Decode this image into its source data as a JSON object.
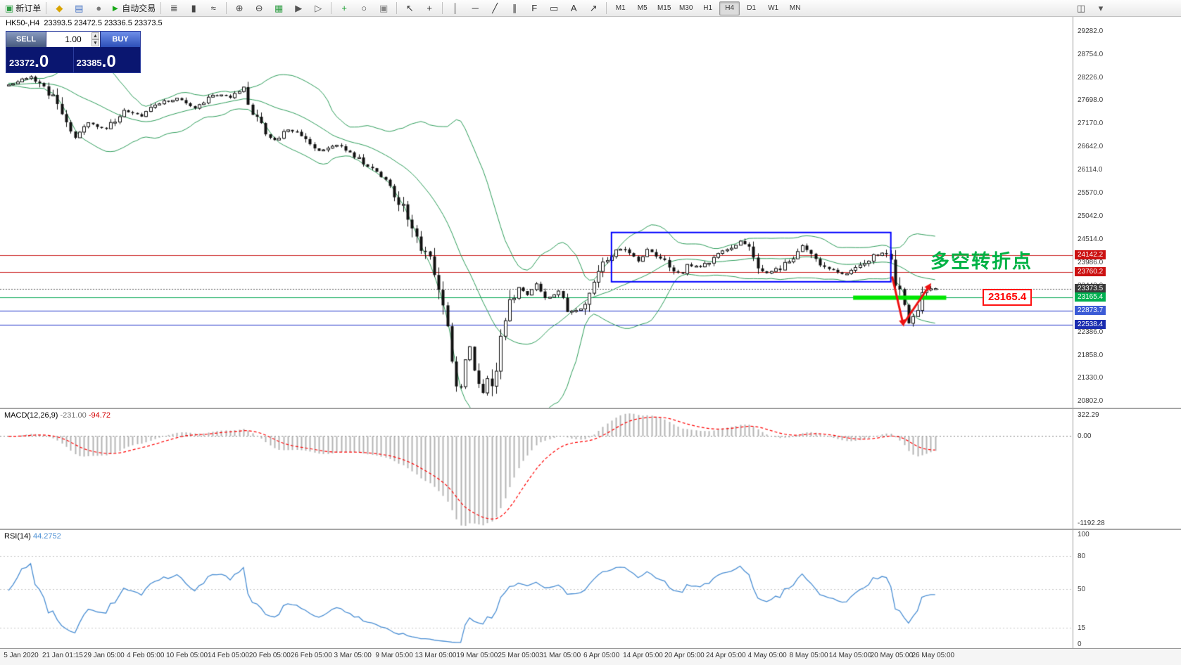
{
  "colors": {
    "toolbar_bg": "#f0f0f0",
    "chart_bg": "#ffffff",
    "bull": "#ffffff",
    "bear": "#111111",
    "candle_outline": "#111111",
    "bollinger": "#2e9e5b",
    "macd_hist": "#b4b4b4",
    "macd_signal": "#ff0000",
    "rsi_line": "#4b8fd4",
    "axis_text": "#3c3c3c",
    "level_red": "#cc2222",
    "level_green": "#00a651",
    "level_blue": "#2233cc",
    "current_price_line": "#666666",
    "box_blue": "#0000ff",
    "highlight_green": "#00e600",
    "annotation_green": "#00b244",
    "arrow_red": "#ee1111"
  },
  "toolbar": {
    "items": [
      {
        "kind": "button",
        "name": "new-order-button",
        "glyph": "▣",
        "glyph_color": "#2f9e44",
        "label": "新订单"
      },
      {
        "kind": "sep"
      },
      {
        "kind": "button",
        "name": "favorites-icon",
        "glyph": "◆",
        "glyph_color": "#d9a400"
      },
      {
        "kind": "button",
        "name": "market-watch-icon",
        "glyph": "▤",
        "glyph_color": "#4472c4"
      },
      {
        "kind": "button",
        "name": "navigator-icon",
        "glyph": "●",
        "glyph_color": "#7a7a7a"
      },
      {
        "kind": "button",
        "name": "autotrade-button",
        "glyph": "►",
        "glyph_color": "#18a818",
        "label": "自动交易"
      },
      {
        "kind": "sep"
      },
      {
        "kind": "button",
        "name": "bar-chart-icon",
        "glyph": "≣",
        "glyph_color": "#444444"
      },
      {
        "kind": "button",
        "name": "candlestick-chart-icon",
        "glyph": "▮",
        "glyph_color": "#444444"
      },
      {
        "kind": "button",
        "name": "line-chart-icon",
        "glyph": "≈",
        "glyph_color": "#444444"
      },
      {
        "kind": "sep"
      },
      {
        "kind": "button",
        "name": "zoom-in-icon",
        "glyph": "⊕",
        "glyph_color": "#444444"
      },
      {
        "kind": "button",
        "name": "zoom-out-icon",
        "glyph": "⊖",
        "glyph_color": "#444444"
      },
      {
        "kind": "button",
        "name": "tile-windows-icon",
        "glyph": "▦",
        "glyph_color": "#2f9e44"
      },
      {
        "kind": "button",
        "name": "auto-scroll-icon",
        "glyph": "▶",
        "glyph_color": "#555555"
      },
      {
        "kind": "button",
        "name": "chart-shift-icon",
        "glyph": "▷",
        "glyph_color": "#555555"
      },
      {
        "kind": "sep"
      },
      {
        "kind": "button",
        "name": "indicators-icon",
        "glyph": "+",
        "glyph_color": "#1d9e33"
      },
      {
        "kind": "button",
        "name": "periods-icon",
        "glyph": "○",
        "glyph_color": "#444444"
      },
      {
        "kind": "button",
        "name": "templates-icon",
        "glyph": "▣",
        "glyph_color": "#888888"
      },
      {
        "kind": "sep"
      },
      {
        "kind": "button",
        "name": "cursor-icon",
        "glyph": "↖",
        "glyph_color": "#333333"
      },
      {
        "kind": "button",
        "name": "crosshair-icon",
        "glyph": "+",
        "glyph_color": "#333333"
      },
      {
        "kind": "sep"
      },
      {
        "kind": "button",
        "name": "vertical-line-icon",
        "glyph": "│",
        "glyph_color": "#333333"
      },
      {
        "kind": "button",
        "name": "horizontal-line-icon",
        "glyph": "─",
        "glyph_color": "#333333"
      },
      {
        "kind": "button",
        "name": "trendline-icon",
        "glyph": "╱",
        "glyph_color": "#333333"
      },
      {
        "kind": "button",
        "name": "channel-icon",
        "glyph": "∥",
        "glyph_color": "#333333"
      },
      {
        "kind": "button",
        "name": "fibonacci-icon",
        "glyph": "F",
        "glyph_color": "#333333"
      },
      {
        "kind": "button",
        "name": "shapes-icon",
        "glyph": "▭",
        "glyph_color": "#333333"
      },
      {
        "kind": "button",
        "name": "text-label-icon",
        "glyph": "A",
        "glyph_color": "#333333"
      },
      {
        "kind": "button",
        "name": "arrows-icon",
        "glyph": "↗",
        "glyph_color": "#333333"
      },
      {
        "kind": "sep"
      }
    ],
    "timeframes": [
      "M1",
      "M5",
      "M15",
      "M30",
      "H1",
      "H4",
      "D1",
      "W1",
      "MN"
    ],
    "active_timeframe": "H4",
    "right_items": [
      {
        "kind": "button",
        "name": "window-arrange-icon",
        "glyph": "◫",
        "glyph_color": "#555555"
      },
      {
        "kind": "button",
        "name": "chart-profile-icon",
        "glyph": "▾",
        "glyph_color": "#555555"
      }
    ]
  },
  "quote_panel": {
    "sell_label": "SELL",
    "buy_label": "BUY",
    "volume": "1.00",
    "sell_price_main": "23372",
    "sell_price_big": ".0",
    "buy_price_main": "23385",
    "buy_price_big": ".0"
  },
  "chart": {
    "symbol": "HK50-,H4",
    "ohlc": "23393.5 23472.5 23336.5 23373.5",
    "annotation": "多空转折点",
    "price_callout": "23165.4",
    "y_axis": [
      "29282.0",
      "28754.0",
      "28226.0",
      "27698.0",
      "27170.0",
      "26642.0",
      "26114.0",
      "25570.0",
      "25042.0",
      "24514.0",
      "23986.0",
      "23442.0",
      "22914.0",
      "22386.0",
      "21858.0",
      "21330.0",
      "20802.0"
    ],
    "levels": [
      {
        "price": 24142.2,
        "label": "24142.2",
        "line": "#cc2222",
        "badge": "#cc1111",
        "style": "solid"
      },
      {
        "price": 23760.2,
        "label": "23760.2",
        "line": "#cc2222",
        "badge": "#cc1111",
        "style": "solid"
      },
      {
        "price": 23373.5,
        "label": "23373.5",
        "line": "#666666",
        "badge": "#3a3a3a",
        "style": "dotted"
      },
      {
        "price": 23165.4,
        "label": "23165.4",
        "line": "#00a651",
        "badge": "#00b050",
        "style": "solid"
      },
      {
        "price": 22873.7,
        "label": "22873.7",
        "line": "#2233cc",
        "badge": "#3b5bd6",
        "style": "solid"
      },
      {
        "price": 22538.4,
        "label": "22538.4",
        "line": "#2233cc",
        "badge": "#1b2db0",
        "style": "solid"
      }
    ],
    "time_axis": [
      "5 Jan 2020",
      "21 Jan 01:15",
      "29 Jan 05:00",
      "4 Feb 05:00",
      "10 Feb 05:00",
      "14 Feb 05:00",
      "20 Feb 05:00",
      "26 Feb 05:00",
      "3 Mar 05:00",
      "9 Mar 05:00",
      "13 Mar 05:00",
      "19 Mar 05:00",
      "25 Mar 05:00",
      "31 Mar 05:00",
      "6 Apr 05:00",
      "14 Apr 05:00",
      "20 Apr 05:00",
      "24 Apr 05:00",
      "4 May 05:00",
      "8 May 05:00",
      "14 May 05:00",
      "20 May 05:00",
      "26 May 05:00"
    ]
  },
  "macd": {
    "name": "MACD(12,26,9)",
    "main_value": "-231.00",
    "signal_value": "-94.72",
    "axis": [
      "322.29",
      "0.00",
      "-1192.28"
    ]
  },
  "rsi": {
    "name": "RSI(14)",
    "value": "44.2752",
    "axis": [
      "100",
      "80",
      "50",
      "15",
      "0"
    ],
    "levels": [
      80,
      50,
      15
    ]
  },
  "chart_data": {
    "type": "candlestick",
    "symbol": "HK50-",
    "timeframe": "H4",
    "current_bar": {
      "open": 23393.5,
      "high": 23472.5,
      "low": 23336.5,
      "close": 23373.5
    },
    "bid": 23372.0,
    "ask": 23385.0,
    "last_close": 23373.5,
    "candle_count": 210,
    "price_axis_range": [
      20802.0,
      29282.0
    ],
    "close_waypoints": [
      [
        0,
        28060
      ],
      [
        5,
        28230
      ],
      [
        8,
        28010
      ],
      [
        12,
        27460
      ],
      [
        15,
        26860
      ],
      [
        18,
        27200
      ],
      [
        22,
        27030
      ],
      [
        26,
        27460
      ],
      [
        30,
        27320
      ],
      [
        34,
        27630
      ],
      [
        38,
        27720
      ],
      [
        42,
        27500
      ],
      [
        46,
        27840
      ],
      [
        50,
        27770
      ],
      [
        53,
        27940
      ],
      [
        56,
        27200
      ],
      [
        60,
        26770
      ],
      [
        63,
        27030
      ],
      [
        66,
        26860
      ],
      [
        70,
        26510
      ],
      [
        74,
        26680
      ],
      [
        78,
        26430
      ],
      [
        82,
        26080
      ],
      [
        85,
        25830
      ],
      [
        88,
        25400
      ],
      [
        90,
        25050
      ],
      [
        93,
        24360
      ],
      [
        95,
        24100
      ],
      [
        96,
        23800
      ],
      [
        97,
        23330
      ],
      [
        98,
        23000
      ],
      [
        99,
        22500
      ],
      [
        100,
        21800
      ],
      [
        101,
        21250
      ],
      [
        102,
        21100
      ],
      [
        103,
        21750
      ],
      [
        104,
        22050
      ],
      [
        105,
        21500
      ],
      [
        106,
        21200
      ],
      [
        107,
        21050
      ],
      [
        108,
        21300
      ],
      [
        109,
        21100
      ],
      [
        110,
        21600
      ],
      [
        111,
        22150
      ],
      [
        112,
        22600
      ],
      [
        113,
        23000
      ],
      [
        115,
        23400
      ],
      [
        117,
        23200
      ],
      [
        119,
        23500
      ],
      [
        121,
        23100
      ],
      [
        124,
        23300
      ],
      [
        126,
        22900
      ],
      [
        129,
        22850
      ],
      [
        131,
        23400
      ],
      [
        134,
        23900
      ],
      [
        136,
        24150
      ],
      [
        137,
        24300
      ],
      [
        140,
        24200
      ],
      [
        142,
        24000
      ],
      [
        144,
        24250
      ],
      [
        147,
        24100
      ],
      [
        149,
        23850
      ],
      [
        152,
        23700
      ],
      [
        153,
        23950
      ],
      [
        156,
        23850
      ],
      [
        158,
        24000
      ],
      [
        160,
        24150
      ],
      [
        163,
        24300
      ],
      [
        165,
        24450
      ],
      [
        167,
        24250
      ],
      [
        169,
        23900
      ],
      [
        171,
        23700
      ],
      [
        174,
        23850
      ],
      [
        176,
        24000
      ],
      [
        179,
        24350
      ],
      [
        181,
        24200
      ],
      [
        183,
        23950
      ],
      [
        186,
        23800
      ],
      [
        188,
        23700
      ],
      [
        190,
        23750
      ],
      [
        193,
        23950
      ],
      [
        195,
        24100
      ],
      [
        197,
        24200
      ],
      [
        199,
        24100
      ],
      [
        200,
        23600
      ],
      [
        201,
        23250
      ],
      [
        202,
        22900
      ],
      [
        203,
        22600
      ],
      [
        204,
        22750
      ],
      [
        205,
        23000
      ],
      [
        206,
        23200
      ],
      [
        207,
        23350
      ],
      [
        209,
        23373.5
      ]
    ],
    "indicators": {
      "bollinger": {
        "period": 20,
        "deviation": 2
      },
      "macd": {
        "params": [
          12,
          26,
          9
        ],
        "value": -231.0,
        "signal": -94.72,
        "axis_max": 322.29,
        "axis_min": -1192.28
      },
      "rsi": {
        "period": 14,
        "value": 44.2752
      }
    },
    "horizontal_levels": [
      24142.2,
      23760.2,
      23165.4,
      22873.7,
      22538.4
    ],
    "drawings": {
      "rectangle": {
        "i1": 136,
        "i2": 199,
        "p1": 24660,
        "p2": 23530
      },
      "green_segment": {
        "price": 23165.4,
        "i1": 190.5,
        "i2": 211.5
      },
      "arrows": [
        {
          "i1": 199.3,
          "p1": 23650,
          "i2": 201.6,
          "p2": 22640
        },
        {
          "i1": 201.8,
          "p1": 22560,
          "i2": 207.3,
          "p2": 23380
        }
      ]
    }
  }
}
